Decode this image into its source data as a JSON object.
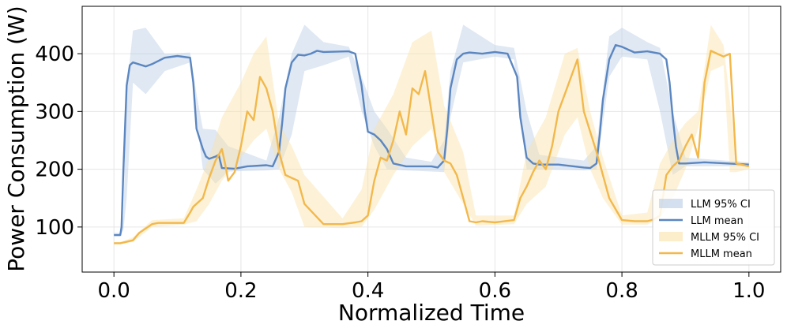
{
  "chart_data": {
    "type": "line",
    "title": "",
    "xlabel": "Normalized Time",
    "ylabel": "Power Consumption (W)",
    "xlim": [
      -0.05,
      1.05
    ],
    "ylim": [
      22,
      482
    ],
    "xticks": [
      0.0,
      0.2,
      0.4,
      0.6,
      0.8,
      1.0
    ],
    "xtick_labels": [
      "0.0",
      "0.2",
      "0.4",
      "0.6",
      "0.8",
      "1.0"
    ],
    "yticks": [
      100,
      200,
      300,
      400
    ],
    "ytick_labels": [
      "100",
      "200",
      "300",
      "400"
    ],
    "grid": true,
    "legend_position": "lower-right",
    "legend": [
      {
        "label": "LLM 95% CI",
        "kind": "band",
        "color": "#b8cce4"
      },
      {
        "label": "LLM mean",
        "kind": "line",
        "color": "#5b86c0"
      },
      {
        "label": "MLLM 95% CI",
        "kind": "band",
        "color": "#fbe3a8"
      },
      {
        "label": "MLLM mean",
        "kind": "line",
        "color": "#f2b84c"
      }
    ],
    "series": [
      {
        "name": "LLM mean",
        "color": "#5b86c0",
        "x": [
          0.0,
          0.01,
          0.012,
          0.015,
          0.02,
          0.025,
          0.03,
          0.05,
          0.06,
          0.08,
          0.1,
          0.12,
          0.125,
          0.13,
          0.14,
          0.145,
          0.15,
          0.16,
          0.165,
          0.17,
          0.19,
          0.21,
          0.24,
          0.25,
          0.26,
          0.265,
          0.27,
          0.28,
          0.29,
          0.3,
          0.31,
          0.32,
          0.33,
          0.37,
          0.38,
          0.39,
          0.395,
          0.4,
          0.41,
          0.42,
          0.43,
          0.44,
          0.46,
          0.5,
          0.51,
          0.52,
          0.525,
          0.53,
          0.54,
          0.55,
          0.56,
          0.58,
          0.6,
          0.62,
          0.635,
          0.64,
          0.65,
          0.66,
          0.67,
          0.7,
          0.74,
          0.75,
          0.76,
          0.765,
          0.77,
          0.78,
          0.79,
          0.8,
          0.82,
          0.84,
          0.86,
          0.87,
          0.875,
          0.88,
          0.885,
          0.89,
          0.9,
          0.93,
          1.0
        ],
        "y": [
          86,
          86,
          100,
          200,
          345,
          380,
          385,
          378,
          382,
          393,
          396,
          393,
          350,
          270,
          235,
          222,
          218,
          222,
          225,
          202,
          201,
          205,
          207,
          205,
          230,
          280,
          340,
          385,
          398,
          397,
          400,
          405,
          403,
          404,
          400,
          345,
          300,
          265,
          260,
          250,
          235,
          210,
          205,
          205,
          203,
          215,
          270,
          340,
          390,
          400,
          402,
          400,
          403,
          400,
          360,
          290,
          220,
          210,
          208,
          208,
          203,
          202,
          210,
          260,
          320,
          390,
          415,
          412,
          402,
          404,
          400,
          390,
          350,
          290,
          240,
          210,
          210,
          212,
          208
        ]
      },
      {
        "name": "MLLM mean",
        "color": "#f2b84c",
        "x": [
          0.0,
          0.01,
          0.03,
          0.04,
          0.06,
          0.07,
          0.11,
          0.12,
          0.125,
          0.14,
          0.15,
          0.16,
          0.17,
          0.175,
          0.18,
          0.19,
          0.2,
          0.21,
          0.22,
          0.23,
          0.24,
          0.25,
          0.26,
          0.27,
          0.28,
          0.29,
          0.3,
          0.33,
          0.36,
          0.38,
          0.39,
          0.4,
          0.41,
          0.42,
          0.43,
          0.44,
          0.45,
          0.46,
          0.47,
          0.48,
          0.49,
          0.5,
          0.51,
          0.52,
          0.53,
          0.54,
          0.55,
          0.56,
          0.57,
          0.58,
          0.6,
          0.63,
          0.64,
          0.65,
          0.66,
          0.67,
          0.68,
          0.69,
          0.7,
          0.71,
          0.72,
          0.73,
          0.74,
          0.76,
          0.77,
          0.78,
          0.8,
          0.82,
          0.84,
          0.85,
          0.86,
          0.87,
          0.88,
          0.89,
          0.9,
          0.91,
          0.92,
          0.93,
          0.94,
          0.95,
          0.96,
          0.97,
          0.98,
          1.0
        ],
        "y": [
          72,
          72,
          77,
          90,
          105,
          107,
          107,
          125,
          135,
          150,
          185,
          215,
          235,
          210,
          180,
          195,
          240,
          300,
          285,
          360,
          340,
          300,
          230,
          190,
          185,
          180,
          140,
          105,
          105,
          108,
          110,
          120,
          180,
          220,
          215,
          250,
          300,
          260,
          340,
          330,
          370,
          300,
          230,
          215,
          210,
          190,
          150,
          110,
          108,
          110,
          108,
          112,
          150,
          170,
          195,
          215,
          200,
          240,
          300,
          330,
          360,
          390,
          300,
          230,
          190,
          150,
          112,
          110,
          110,
          113,
          120,
          190,
          205,
          215,
          240,
          260,
          220,
          350,
          405,
          400,
          395,
          400,
          210,
          205
        ]
      },
      {
        "name": "LLM 95% CI",
        "color": "#b8cce4",
        "x": [
          0.0,
          0.01,
          0.015,
          0.02,
          0.03,
          0.05,
          0.08,
          0.12,
          0.13,
          0.14,
          0.16,
          0.18,
          0.24,
          0.26,
          0.28,
          0.3,
          0.33,
          0.37,
          0.39,
          0.41,
          0.43,
          0.46,
          0.5,
          0.52,
          0.53,
          0.55,
          0.6,
          0.63,
          0.65,
          0.67,
          0.74,
          0.76,
          0.78,
          0.8,
          0.84,
          0.86,
          0.88,
          0.9,
          1.0
        ],
        "lower": [
          84,
          84,
          95,
          150,
          350,
          330,
          370,
          385,
          290,
          200,
          175,
          196,
          198,
          200,
          260,
          370,
          380,
          395,
          300,
          240,
          200,
          198,
          196,
          195,
          290,
          385,
          395,
          390,
          200,
          200,
          198,
          200,
          360,
          395,
          390,
          300,
          190,
          205,
          205
        ],
        "upper": [
          90,
          90,
          120,
          340,
          440,
          445,
          400,
          402,
          330,
          270,
          268,
          240,
          215,
          290,
          400,
          450,
          420,
          412,
          360,
          300,
          270,
          220,
          213,
          250,
          370,
          450,
          415,
          410,
          300,
          225,
          215,
          240,
          430,
          445,
          420,
          410,
          300,
          220,
          212
        ]
      },
      {
        "name": "MLLM 95% CI",
        "color": "#fbe3a8",
        "x": [
          0.0,
          0.01,
          0.03,
          0.06,
          0.11,
          0.13,
          0.15,
          0.17,
          0.2,
          0.22,
          0.24,
          0.26,
          0.28,
          0.3,
          0.36,
          0.39,
          0.41,
          0.44,
          0.47,
          0.5,
          0.52,
          0.55,
          0.57,
          0.63,
          0.65,
          0.68,
          0.71,
          0.73,
          0.75,
          0.77,
          0.8,
          0.84,
          0.86,
          0.88,
          0.9,
          0.92,
          0.94,
          0.96,
          0.97,
          0.98,
          1.0
        ],
        "lower": [
          70,
          70,
          74,
          100,
          104,
          110,
          140,
          180,
          220,
          250,
          270,
          200,
          160,
          100,
          98,
          100,
          130,
          190,
          240,
          270,
          195,
          140,
          102,
          105,
          140,
          170,
          260,
          290,
          200,
          150,
          104,
          104,
          115,
          150,
          200,
          270,
          370,
          380,
          195,
          195,
          200
        ],
        "upper": [
          74,
          74,
          82,
          112,
          115,
          165,
          220,
          290,
          350,
          400,
          430,
          280,
          240,
          190,
          115,
          165,
          270,
          330,
          420,
          440,
          310,
          230,
          120,
          120,
          230,
          290,
          400,
          410,
          300,
          220,
          120,
          125,
          210,
          250,
          280,
          300,
          450,
          415,
          320,
          215,
          210
        ]
      }
    ]
  }
}
